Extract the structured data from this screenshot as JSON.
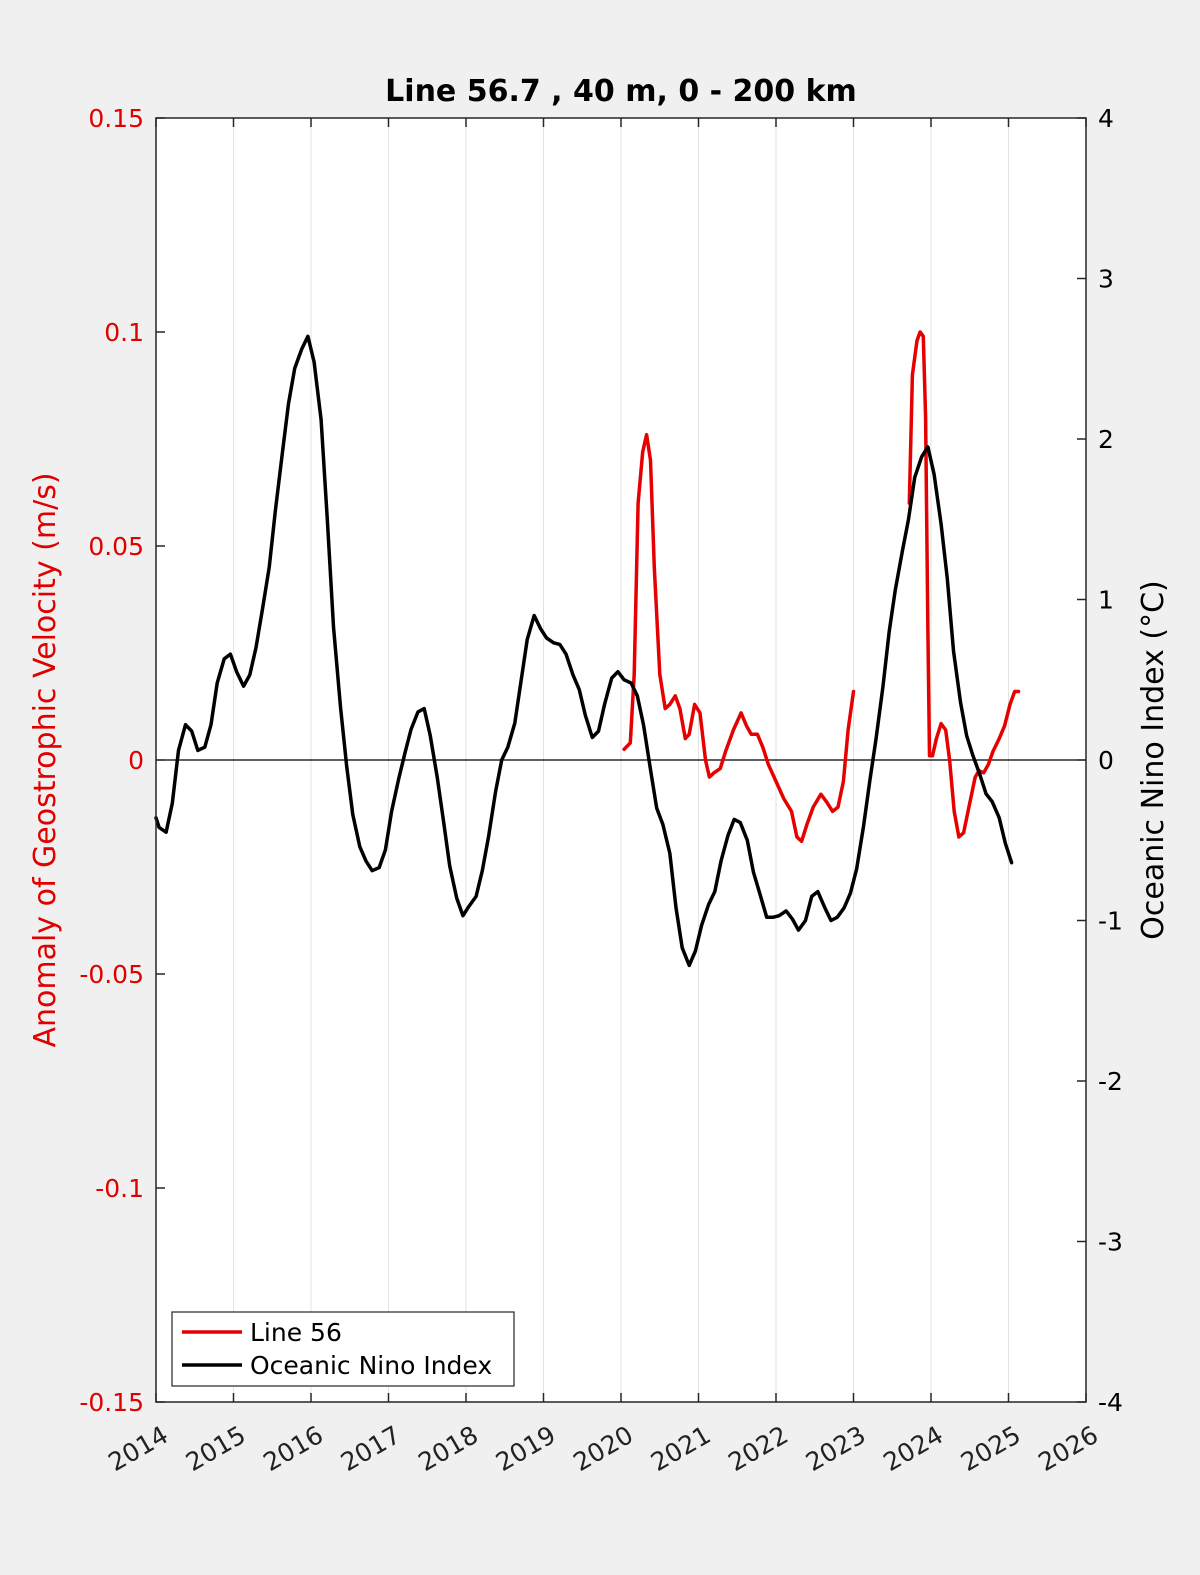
{
  "chart_data": {
    "type": "line",
    "title": "Line 56.7 , 40 m, 0 - 200 km",
    "ylabel": "Anomaly of Geostrophic Velocity (m/s)",
    "ylabel_right": "Oceanic Nino Index (°C)",
    "xlim": [
      2014,
      2026
    ],
    "ylim": [
      -0.15,
      0.15
    ],
    "ylim_right": [
      -4,
      4
    ],
    "x_ticks": [
      2014,
      2015,
      2016,
      2017,
      2018,
      2019,
      2020,
      2021,
      2022,
      2023,
      2024,
      2025,
      2026
    ],
    "x_tick_labels": [
      "2014",
      "2015",
      "2016",
      "2017",
      "2018",
      "2019",
      "2020",
      "2021",
      "2022",
      "2023",
      "2024",
      "2025",
      "2026"
    ],
    "y_ticks_left": [
      -0.15,
      -0.1,
      -0.05,
      0,
      0.05,
      0.1,
      0.15
    ],
    "y_tick_labels_left": [
      "-0.15",
      "-0.1",
      "-0.05",
      "0",
      "0.05",
      "0.1",
      "0.15"
    ],
    "y_ticks_right": [
      -4,
      -3,
      -2,
      -1,
      0,
      1,
      2,
      3,
      4
    ],
    "y_tick_labels_right": [
      "-4",
      "-3",
      "-2",
      "-1",
      "0",
      "1",
      "2",
      "3",
      "4"
    ],
    "grid": "vertical",
    "zero_line": true,
    "legend_position": "bottom-left",
    "series": [
      {
        "name": "Line 56",
        "color": "#e60000",
        "axis": "left",
        "points": [
          [
            2020.04,
            0.0025
          ],
          [
            2020.12,
            0.004
          ],
          [
            2020.17,
            0.02
          ],
          [
            2020.22,
            0.06
          ],
          [
            2020.28,
            0.072
          ],
          [
            2020.33,
            0.076
          ],
          [
            2020.38,
            0.07
          ],
          [
            2020.43,
            0.045
          ],
          [
            2020.5,
            0.02
          ],
          [
            2020.57,
            0.012
          ],
          [
            2020.63,
            0.013
          ],
          [
            2020.7,
            0.015
          ],
          [
            2020.76,
            0.012
          ],
          [
            2020.83,
            0.005
          ],
          [
            2020.88,
            0.006
          ],
          [
            2020.95,
            0.013
          ],
          [
            2021.02,
            0.011
          ],
          [
            2021.09,
            0.0
          ],
          [
            2021.14,
            -0.004
          ],
          [
            2021.2,
            -0.003
          ],
          [
            2021.28,
            -0.002
          ],
          [
            2021.35,
            0.002
          ],
          [
            2021.45,
            0.007
          ],
          [
            2021.55,
            0.011
          ],
          [
            2021.62,
            0.008
          ],
          [
            2021.68,
            0.006
          ],
          [
            2021.76,
            0.006
          ],
          [
            2021.83,
            0.003
          ],
          [
            2021.9,
            -0.001
          ],
          [
            2022.0,
            -0.005
          ],
          [
            2022.1,
            -0.009
          ],
          [
            2022.2,
            -0.012
          ],
          [
            2022.27,
            -0.018
          ],
          [
            2022.33,
            -0.019
          ],
          [
            2022.4,
            -0.015
          ],
          [
            2022.48,
            -0.011
          ],
          [
            2022.58,
            -0.008
          ],
          [
            2022.66,
            -0.01
          ],
          [
            2022.73,
            -0.012
          ],
          [
            2022.8,
            -0.011
          ],
          [
            2022.87,
            -0.005
          ],
          [
            2022.93,
            0.007
          ],
          [
            2023.0,
            0.016
          ]
        ]
      },
      {
        "name": "Line 56",
        "color": "#e60000",
        "axis": "left",
        "points": [
          [
            2023.72,
            0.06
          ],
          [
            2023.76,
            0.09
          ],
          [
            2023.82,
            0.098
          ],
          [
            2023.86,
            0.1
          ],
          [
            2023.9,
            0.099
          ],
          [
            2023.93,
            0.08
          ],
          [
            2023.96,
            0.03
          ],
          [
            2023.98,
            0.001
          ],
          [
            2024.02,
            0.001
          ],
          [
            2024.07,
            0.005
          ],
          [
            2024.13,
            0.0085
          ],
          [
            2024.19,
            0.007
          ],
          [
            2024.24,
            0.0
          ],
          [
            2024.3,
            -0.012
          ],
          [
            2024.36,
            -0.018
          ],
          [
            2024.42,
            -0.017
          ],
          [
            2024.5,
            -0.01
          ],
          [
            2024.57,
            -0.004
          ],
          [
            2024.62,
            -0.0025
          ],
          [
            2024.68,
            -0.003
          ],
          [
            2024.74,
            -0.001
          ],
          [
            2024.8,
            0.002
          ],
          [
            2024.88,
            0.005
          ],
          [
            2024.95,
            0.008
          ],
          [
            2025.02,
            0.013
          ],
          [
            2025.08,
            0.016
          ],
          [
            2025.13,
            0.016
          ]
        ]
      },
      {
        "name": "Oceanic Nino Index",
        "color": "#000000",
        "axis": "right",
        "points": [
          [
            2014.0,
            -0.36
          ],
          [
            2014.04,
            -0.42
          ],
          [
            2014.13,
            -0.45
          ],
          [
            2014.21,
            -0.27
          ],
          [
            2014.29,
            0.06
          ],
          [
            2014.38,
            0.22
          ],
          [
            2014.46,
            0.18
          ],
          [
            2014.54,
            0.06
          ],
          [
            2014.63,
            0.08
          ],
          [
            2014.71,
            0.22
          ],
          [
            2014.79,
            0.48
          ],
          [
            2014.88,
            0.63
          ],
          [
            2014.96,
            0.66
          ],
          [
            2015.04,
            0.55
          ],
          [
            2015.13,
            0.46
          ],
          [
            2015.21,
            0.53
          ],
          [
            2015.29,
            0.7
          ],
          [
            2015.38,
            0.96
          ],
          [
            2015.46,
            1.2
          ],
          [
            2015.54,
            1.55
          ],
          [
            2015.63,
            1.91
          ],
          [
            2015.71,
            2.22
          ],
          [
            2015.79,
            2.44
          ],
          [
            2015.88,
            2.56
          ],
          [
            2015.96,
            2.64
          ],
          [
            2016.04,
            2.48
          ],
          [
            2016.13,
            2.12
          ],
          [
            2016.21,
            1.5
          ],
          [
            2016.29,
            0.83
          ],
          [
            2016.38,
            0.33
          ],
          [
            2016.46,
            -0.04
          ],
          [
            2016.54,
            -0.34
          ],
          [
            2016.63,
            -0.54
          ],
          [
            2016.71,
            -0.63
          ],
          [
            2016.79,
            -0.69
          ],
          [
            2016.88,
            -0.67
          ],
          [
            2016.96,
            -0.56
          ],
          [
            2017.04,
            -0.32
          ],
          [
            2017.13,
            -0.12
          ],
          [
            2017.21,
            0.04
          ],
          [
            2017.29,
            0.19
          ],
          [
            2017.38,
            0.3
          ],
          [
            2017.46,
            0.32
          ],
          [
            2017.54,
            0.15
          ],
          [
            2017.63,
            -0.11
          ],
          [
            2017.71,
            -0.38
          ],
          [
            2017.79,
            -0.66
          ],
          [
            2017.88,
            -0.86
          ],
          [
            2017.96,
            -0.97
          ],
          [
            2018.04,
            -0.91
          ],
          [
            2018.13,
            -0.85
          ],
          [
            2018.21,
            -0.69
          ],
          [
            2018.29,
            -0.48
          ],
          [
            2018.38,
            -0.2
          ],
          [
            2018.46,
            0.0
          ],
          [
            2018.54,
            0.08
          ],
          [
            2018.63,
            0.23
          ],
          [
            2018.71,
            0.49
          ],
          [
            2018.79,
            0.75
          ],
          [
            2018.88,
            0.9
          ],
          [
            2018.96,
            0.82
          ],
          [
            2019.04,
            0.76
          ],
          [
            2019.13,
            0.73
          ],
          [
            2019.21,
            0.72
          ],
          [
            2019.29,
            0.66
          ],
          [
            2019.38,
            0.53
          ],
          [
            2019.46,
            0.44
          ],
          [
            2019.54,
            0.28
          ],
          [
            2019.63,
            0.14
          ],
          [
            2019.71,
            0.18
          ],
          [
            2019.79,
            0.35
          ],
          [
            2019.88,
            0.51
          ],
          [
            2019.96,
            0.55
          ],
          [
            2020.04,
            0.5
          ],
          [
            2020.13,
            0.48
          ],
          [
            2020.21,
            0.4
          ],
          [
            2020.29,
            0.22
          ],
          [
            2020.38,
            -0.06
          ],
          [
            2020.46,
            -0.3
          ],
          [
            2020.54,
            -0.4
          ],
          [
            2020.63,
            -0.58
          ],
          [
            2020.71,
            -0.92
          ],
          [
            2020.79,
            -1.17
          ],
          [
            2020.88,
            -1.28
          ],
          [
            2020.96,
            -1.19
          ],
          [
            2021.04,
            -1.03
          ],
          [
            2021.13,
            -0.9
          ],
          [
            2021.21,
            -0.82
          ],
          [
            2021.29,
            -0.63
          ],
          [
            2021.38,
            -0.47
          ],
          [
            2021.46,
            -0.37
          ],
          [
            2021.54,
            -0.39
          ],
          [
            2021.63,
            -0.5
          ],
          [
            2021.71,
            -0.7
          ],
          [
            2021.79,
            -0.83
          ],
          [
            2021.88,
            -0.98
          ],
          [
            2021.96,
            -0.98
          ],
          [
            2022.04,
            -0.97
          ],
          [
            2022.13,
            -0.94
          ],
          [
            2022.21,
            -0.99
          ],
          [
            2022.29,
            -1.06
          ],
          [
            2022.38,
            -1.0
          ],
          [
            2022.46,
            -0.85
          ],
          [
            2022.54,
            -0.82
          ],
          [
            2022.63,
            -0.92
          ],
          [
            2022.71,
            -1.0
          ],
          [
            2022.79,
            -0.98
          ],
          [
            2022.88,
            -0.92
          ],
          [
            2022.96,
            -0.83
          ],
          [
            2023.04,
            -0.68
          ],
          [
            2023.13,
            -0.41
          ],
          [
            2023.21,
            -0.13
          ],
          [
            2023.29,
            0.13
          ],
          [
            2023.38,
            0.46
          ],
          [
            2023.46,
            0.8
          ],
          [
            2023.54,
            1.06
          ],
          [
            2023.63,
            1.3
          ],
          [
            2023.71,
            1.5
          ],
          [
            2023.79,
            1.76
          ],
          [
            2023.88,
            1.89
          ],
          [
            2023.96,
            1.95
          ],
          [
            2024.04,
            1.78
          ],
          [
            2024.13,
            1.47
          ],
          [
            2024.21,
            1.13
          ],
          [
            2024.29,
            0.68
          ],
          [
            2024.38,
            0.36
          ],
          [
            2024.46,
            0.15
          ],
          [
            2024.54,
            0.03
          ],
          [
            2024.63,
            -0.09
          ],
          [
            2024.71,
            -0.21
          ],
          [
            2024.79,
            -0.26
          ],
          [
            2024.88,
            -0.36
          ],
          [
            2024.96,
            -0.52
          ],
          [
            2025.04,
            -0.64
          ]
        ]
      }
    ],
    "legend": [
      {
        "label": "Line 56",
        "color": "#e60000"
      },
      {
        "label": "Oceanic Nino Index",
        "color": "#000000"
      }
    ]
  }
}
